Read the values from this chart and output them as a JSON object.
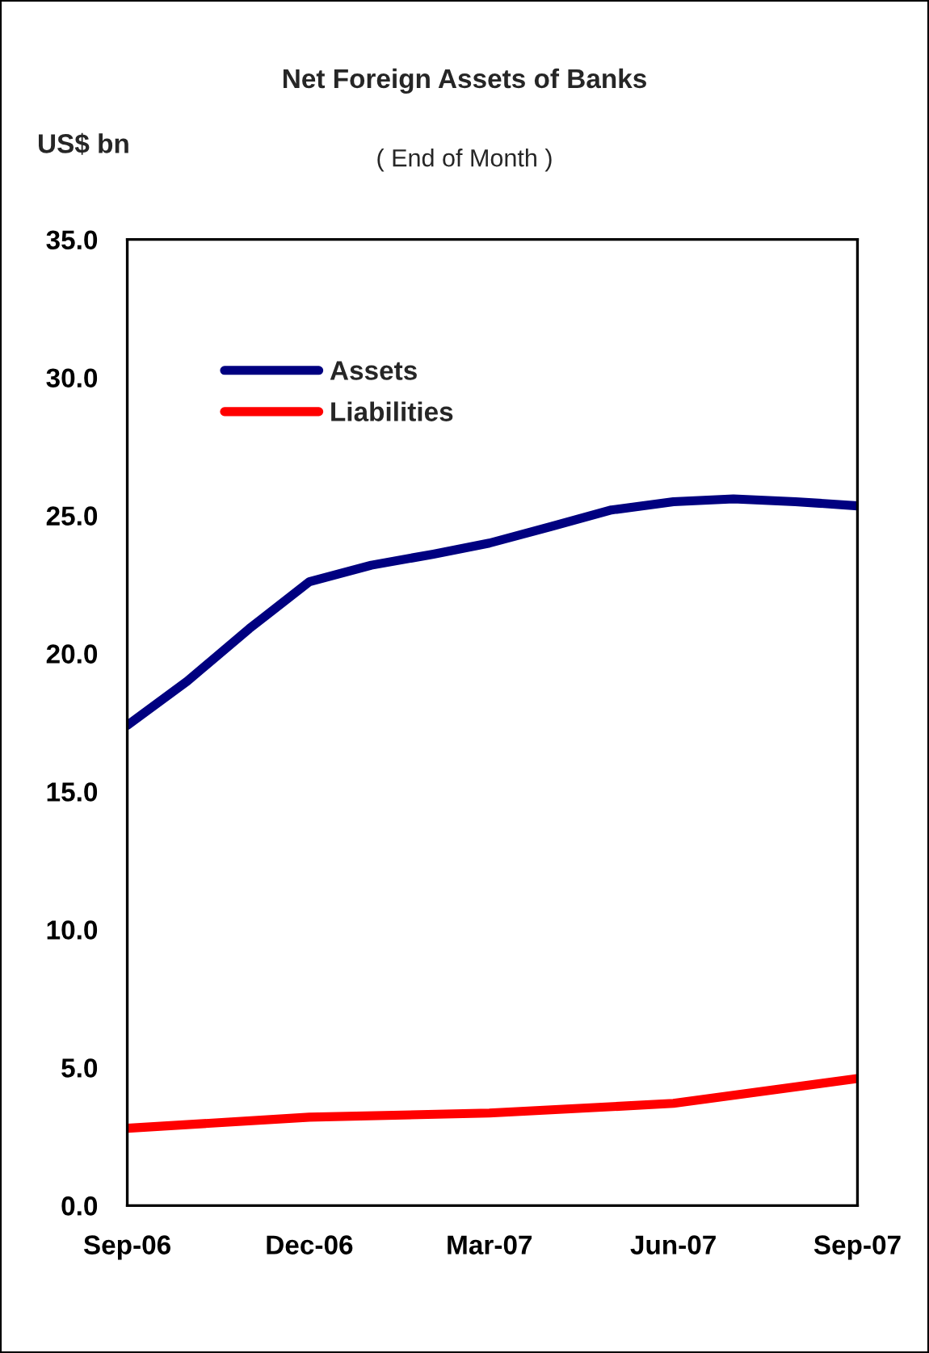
{
  "chart_data": {
    "type": "line",
    "title": "Net Foreign Assets of Banks",
    "subtitle": "( End of Month )",
    "ylabel": "US$ bn",
    "series": [
      {
        "name": "Assets",
        "color": "#000080",
        "x": [
          "2006-09",
          "2006-10",
          "2006-11",
          "2006-12",
          "2007-01",
          "2007-02",
          "2007-03",
          "2007-04",
          "2007-05",
          "2007-06",
          "2007-07",
          "2007-08",
          "2007-09"
        ],
        "values": [
          17.4,
          19.0,
          20.9,
          22.6,
          23.2,
          23.6,
          24.0,
          24.6,
          25.2,
          25.5,
          25.6,
          25.5,
          25.35
        ]
      },
      {
        "name": "Liabilities",
        "color": "#ff0000",
        "x": [
          "2006-09",
          "2006-12",
          "2007-03",
          "2007-06",
          "2007-09"
        ],
        "values": [
          2.8,
          3.2,
          3.35,
          3.7,
          4.6
        ]
      }
    ],
    "xlim": [
      "2006-09",
      "2007-09"
    ],
    "xticks": [
      {
        "value": "2006-09",
        "label": "Sep-06"
      },
      {
        "value": "2006-12",
        "label": "Dec-06"
      },
      {
        "value": "2007-03",
        "label": "Mar-07"
      },
      {
        "value": "2007-06",
        "label": "Jun-07"
      },
      {
        "value": "2007-09",
        "label": "Sep-07"
      }
    ],
    "ylim": [
      0,
      35
    ],
    "yticks": [
      {
        "value": 0,
        "label": "0.0"
      },
      {
        "value": 5,
        "label": "5.0"
      },
      {
        "value": 10,
        "label": "10.0"
      },
      {
        "value": 15,
        "label": "15.0"
      },
      {
        "value": 20,
        "label": "20.0"
      },
      {
        "value": 25,
        "label": "25.0"
      },
      {
        "value": 30,
        "label": "30.0"
      },
      {
        "value": 35,
        "label": "35.0"
      }
    ],
    "grid": false,
    "legend": "top left",
    "marker": "none",
    "line_style": "solid"
  }
}
